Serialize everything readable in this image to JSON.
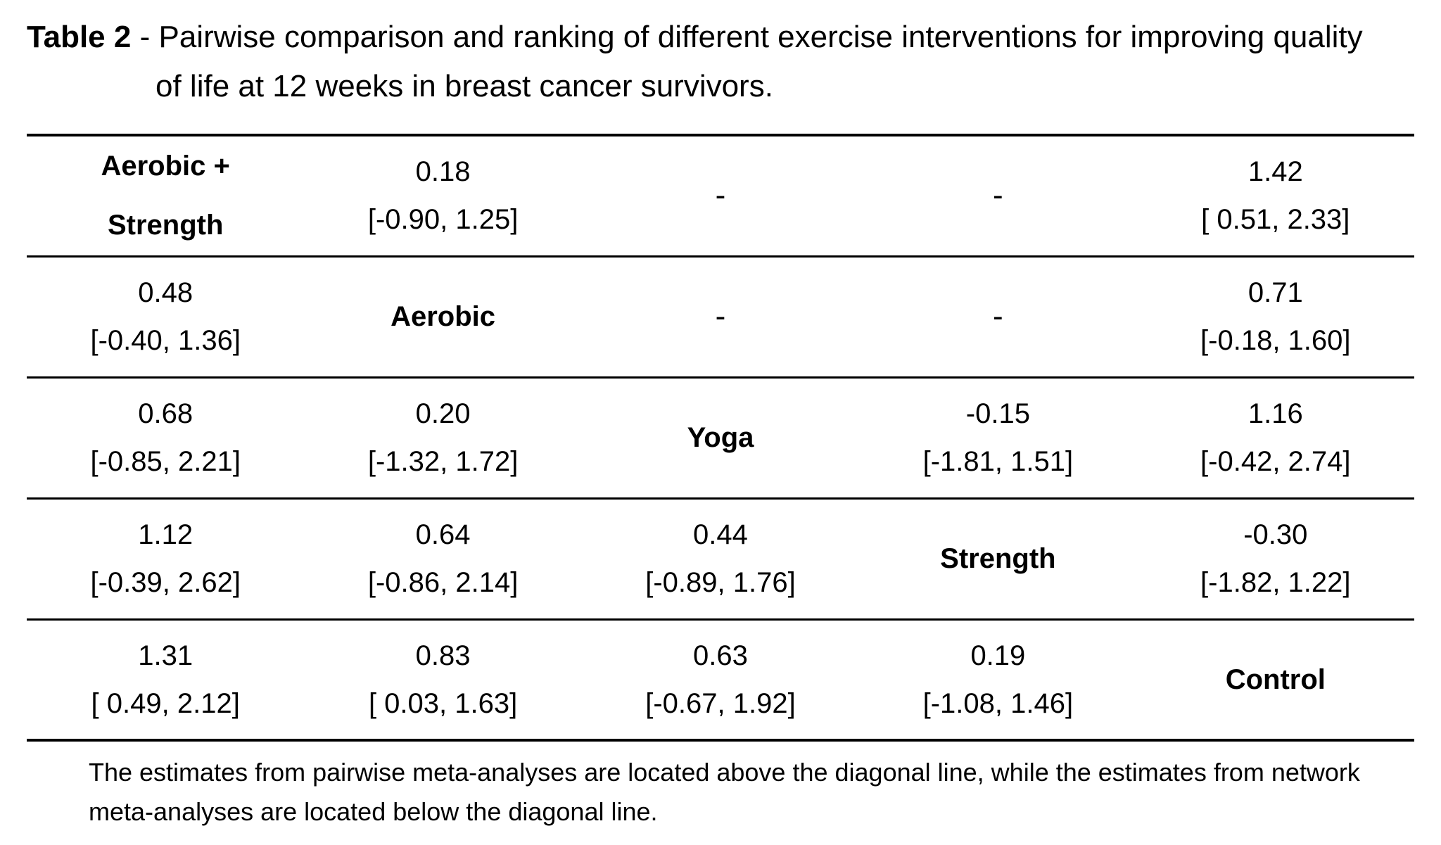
{
  "caption": {
    "label": "Table 2",
    "separator": "-",
    "line1": "Pairwise comparison and ranking of different exercise interventions for improving quality",
    "line2": "of life at 12 weeks in breast cancer survivors."
  },
  "table": {
    "rows": [
      {
        "cells": [
          {
            "type": "diag",
            "line1": "Aerobic +",
            "line2": "Strength"
          },
          {
            "type": "est",
            "est": "0.18",
            "ci": "[-0.90, 1.25]"
          },
          {
            "type": "dash",
            "text": "-"
          },
          {
            "type": "dash",
            "text": "-"
          },
          {
            "type": "est",
            "est": "1.42",
            "ci": "[ 0.51, 2.33]"
          }
        ]
      },
      {
        "cells": [
          {
            "type": "est",
            "est": "0.48",
            "ci": "[-0.40, 1.36]"
          },
          {
            "type": "diag",
            "line1": "Aerobic",
            "line2": ""
          },
          {
            "type": "dash",
            "text": "-"
          },
          {
            "type": "dash",
            "text": "-"
          },
          {
            "type": "est",
            "est": "0.71",
            "ci": "[-0.18, 1.60]"
          }
        ]
      },
      {
        "cells": [
          {
            "type": "est",
            "est": "0.68",
            "ci": "[-0.85, 2.21]"
          },
          {
            "type": "est",
            "est": "0.20",
            "ci": "[-1.32, 1.72]"
          },
          {
            "type": "diag",
            "line1": "Yoga",
            "line2": ""
          },
          {
            "type": "est",
            "est": "-0.15",
            "ci": "[-1.81, 1.51]"
          },
          {
            "type": "est",
            "est": "1.16",
            "ci": "[-0.42, 2.74]"
          }
        ]
      },
      {
        "cells": [
          {
            "type": "est",
            "est": "1.12",
            "ci": "[-0.39, 2.62]"
          },
          {
            "type": "est",
            "est": "0.64",
            "ci": "[-0.86, 2.14]"
          },
          {
            "type": "est",
            "est": "0.44",
            "ci": "[-0.89, 1.76]"
          },
          {
            "type": "diag",
            "line1": "Strength",
            "line2": ""
          },
          {
            "type": "est",
            "est": "-0.30",
            "ci": "[-1.82, 1.22]"
          }
        ]
      },
      {
        "cells": [
          {
            "type": "est",
            "est": "1.31",
            "ci": "[ 0.49, 2.12]"
          },
          {
            "type": "est",
            "est": "0.83",
            "ci": "[ 0.03, 1.63]"
          },
          {
            "type": "est",
            "est": "0.63",
            "ci": "[-0.67, 1.92]"
          },
          {
            "type": "est",
            "est": "0.19",
            "ci": "[-1.08, 1.46]"
          },
          {
            "type": "diag",
            "line1": "Control",
            "line2": ""
          }
        ]
      }
    ]
  },
  "footnote": {
    "line1": "The estimates from pairwise meta-analyses are located above the diagonal line, while the estimates from network",
    "line2": "meta-analyses are located below the diagonal line."
  }
}
